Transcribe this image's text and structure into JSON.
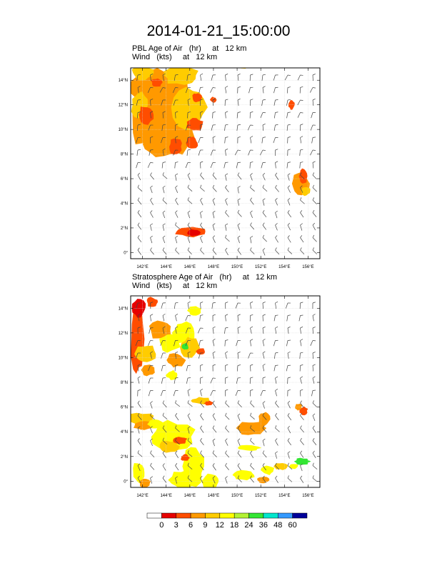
{
  "title": "2014-01-21_15:00:00",
  "chart_data": [
    {
      "type": "heatmap",
      "title": "PBL Age of Air   (hr)     at   12 km",
      "subtitle": "Wind   (kts)     at   12 km",
      "x_ticks": [
        "142°E",
        "144°E",
        "146°E",
        "148°E",
        "150°E",
        "152°E",
        "154°E",
        "156°E"
      ],
      "y_ticks": [
        "0°",
        "2°N",
        "4°N",
        "6°N",
        "8°N",
        "10°N",
        "12°N",
        "14°N"
      ],
      "xlim": [
        141,
        157
      ],
      "ylim": [
        -0.5,
        15
      ],
      "grid": true
    },
    {
      "type": "heatmap",
      "title": "Stratosphere Age of Air   (hr)     at   12 km",
      "subtitle": "Wind   (kts)     at   12 km",
      "x_ticks": [
        "142°E",
        "144°E",
        "146°E",
        "148°E",
        "150°E",
        "152°E",
        "154°E",
        "156°E"
      ],
      "y_ticks": [
        "0°",
        "2°N",
        "4°N",
        "6°N",
        "8°N",
        "10°N",
        "12°N",
        "14°N"
      ],
      "xlim": [
        141,
        157
      ],
      "ylim": [
        -0.5,
        15
      ],
      "grid": true
    }
  ],
  "colorbar": {
    "labels": [
      "0",
      "3",
      "6",
      "9",
      "12",
      "18",
      "24",
      "36",
      "48",
      "60"
    ],
    "colors": [
      "#ffffff",
      "#e60000",
      "#ff4d00",
      "#ff9900",
      "#ffcc00",
      "#ffff00",
      "#b3f233",
      "#33e633",
      "#00e6cc",
      "#3399ff",
      "#000099"
    ]
  },
  "colors": {
    "yellow": "#ffff00",
    "gold": "#ffcc00",
    "orange": "#ff9900",
    "red_orange": "#ff4d00",
    "red": "#e60000",
    "green": "#33e633"
  }
}
